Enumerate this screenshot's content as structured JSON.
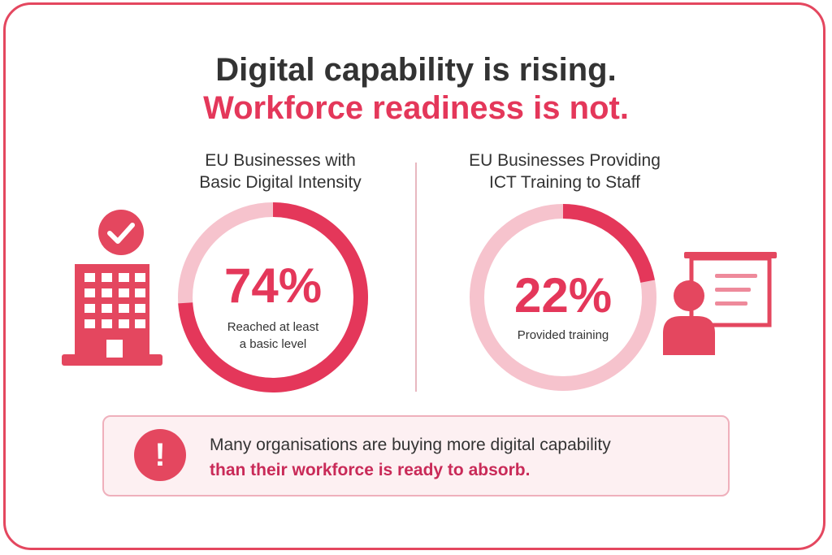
{
  "headline": {
    "line1": "Digital capability is rising.",
    "line2": "Workforce readiness is not."
  },
  "chart_data": [
    {
      "type": "pie",
      "title": "EU Businesses with Basic Digital Intensity",
      "title_lines": [
        "EU Businesses with",
        "Basic Digital Intensity"
      ],
      "value_label": "74%",
      "caption_lines": [
        "Reached at least",
        "a basic level"
      ],
      "slices": [
        {
          "label": "Reached at least a basic level",
          "value": 74
        },
        {
          "label": "",
          "value": 26
        }
      ]
    },
    {
      "type": "pie",
      "title": "EU Businesses Providing ICT Training to Staff",
      "title_lines": [
        "EU Businesses Providing",
        "ICT Training to Staff"
      ],
      "value_label": "22%",
      "caption_lines": [
        "Provided training"
      ],
      "slices": [
        {
          "label": "Provided training",
          "value": 22
        },
        {
          "label": "",
          "value": 78
        }
      ]
    }
  ],
  "callout": {
    "icon": "exclamation-icon",
    "line1": "Many organisations are buying more digital capability",
    "line2": "than their workforce is ready to absorb."
  },
  "colors": {
    "accent": "#e4375a",
    "ring_track": "#f6c3cd",
    "text": "#333333",
    "banner_bg": "#fdf0f2"
  },
  "icons": {
    "left": [
      "building-icon",
      "checkmark-badge-icon"
    ],
    "right": [
      "presenter-icon",
      "presentation-board-icon"
    ]
  }
}
